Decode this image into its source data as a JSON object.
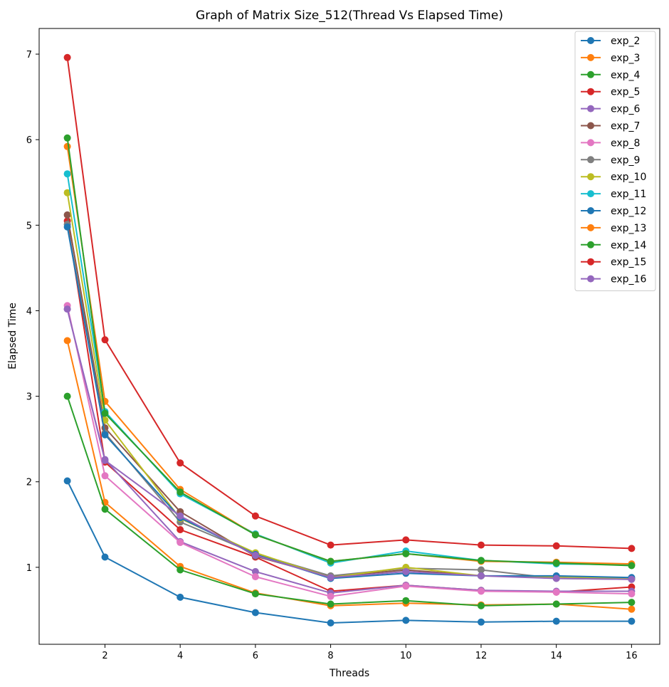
{
  "chart_data": {
    "type": "line",
    "title": "Graph of Matrix Size_512(Thread Vs Elapsed Time)",
    "xlabel": "Threads",
    "ylabel": "Elapsed Time",
    "x": [
      1,
      2,
      4,
      6,
      8,
      10,
      12,
      14,
      16
    ],
    "x_ticks": [
      2,
      4,
      6,
      8,
      10,
      12,
      14,
      16
    ],
    "y_ticks": [
      1,
      2,
      3,
      4,
      5,
      6,
      7
    ],
    "xlim": [
      0.25,
      16.75
    ],
    "ylim": [
      0.1,
      7.3
    ],
    "grid": false,
    "legend_position": "top-right",
    "series": [
      {
        "name": "exp_2",
        "color": "#1f77b4",
        "values": [
          2.01,
          1.12,
          0.65,
          0.47,
          0.35,
          0.38,
          0.36,
          0.37,
          0.37
        ]
      },
      {
        "name": "exp_3",
        "color": "#ff7f0e",
        "values": [
          3.65,
          1.76,
          1.01,
          0.7,
          0.55,
          0.58,
          0.56,
          0.57,
          0.51
        ]
      },
      {
        "name": "exp_4",
        "color": "#2ca02c",
        "values": [
          3.0,
          1.68,
          0.97,
          0.69,
          0.57,
          0.61,
          0.55,
          0.57,
          0.59
        ]
      },
      {
        "name": "exp_5",
        "color": "#d62728",
        "values": [
          5.05,
          2.23,
          1.44,
          1.12,
          0.72,
          0.79,
          0.73,
          0.71,
          0.77
        ]
      },
      {
        "name": "exp_6",
        "color": "#9467bd",
        "values": [
          4.02,
          2.26,
          1.3,
          0.95,
          0.7,
          0.79,
          0.73,
          0.72,
          0.72
        ]
      },
      {
        "name": "exp_7",
        "color": "#8c564b",
        "values": [
          5.12,
          2.63,
          1.65,
          1.13,
          0.89,
          0.97,
          0.9,
          0.89,
          0.87
        ]
      },
      {
        "name": "exp_8",
        "color": "#e377c2",
        "values": [
          4.06,
          2.07,
          1.29,
          0.89,
          0.66,
          0.78,
          0.72,
          0.71,
          0.69
        ]
      },
      {
        "name": "exp_9",
        "color": "#7f7f7f",
        "values": [
          5.01,
          2.57,
          1.53,
          1.16,
          0.9,
          0.99,
          0.97,
          0.87,
          0.86
        ]
      },
      {
        "name": "exp_10",
        "color": "#bcbd22",
        "values": [
          5.38,
          2.72,
          1.57,
          1.17,
          0.88,
          1.0,
          0.9,
          0.89,
          0.87
        ]
      },
      {
        "name": "exp_11",
        "color": "#17becf",
        "values": [
          5.6,
          2.82,
          1.86,
          1.39,
          1.05,
          1.19,
          1.08,
          1.04,
          1.03
        ]
      },
      {
        "name": "exp_12",
        "color": "#1f77b4",
        "values": [
          4.98,
          2.55,
          1.58,
          1.15,
          0.87,
          0.93,
          0.9,
          0.9,
          0.88
        ]
      },
      {
        "name": "exp_13",
        "color": "#ff7f0e",
        "values": [
          5.92,
          2.94,
          1.91,
          1.38,
          1.07,
          1.16,
          1.07,
          1.06,
          1.04
        ]
      },
      {
        "name": "exp_14",
        "color": "#2ca02c",
        "values": [
          6.02,
          2.8,
          1.88,
          1.38,
          1.07,
          1.16,
          1.08,
          1.05,
          1.02
        ]
      },
      {
        "name": "exp_15",
        "color": "#d62728",
        "values": [
          6.96,
          3.66,
          2.22,
          1.6,
          1.26,
          1.32,
          1.26,
          1.25,
          1.22
        ]
      },
      {
        "name": "exp_16",
        "color": "#9467bd",
        "values": [
          4.02,
          2.25,
          1.6,
          1.14,
          0.88,
          0.95,
          0.9,
          0.87,
          0.86
        ]
      }
    ]
  }
}
